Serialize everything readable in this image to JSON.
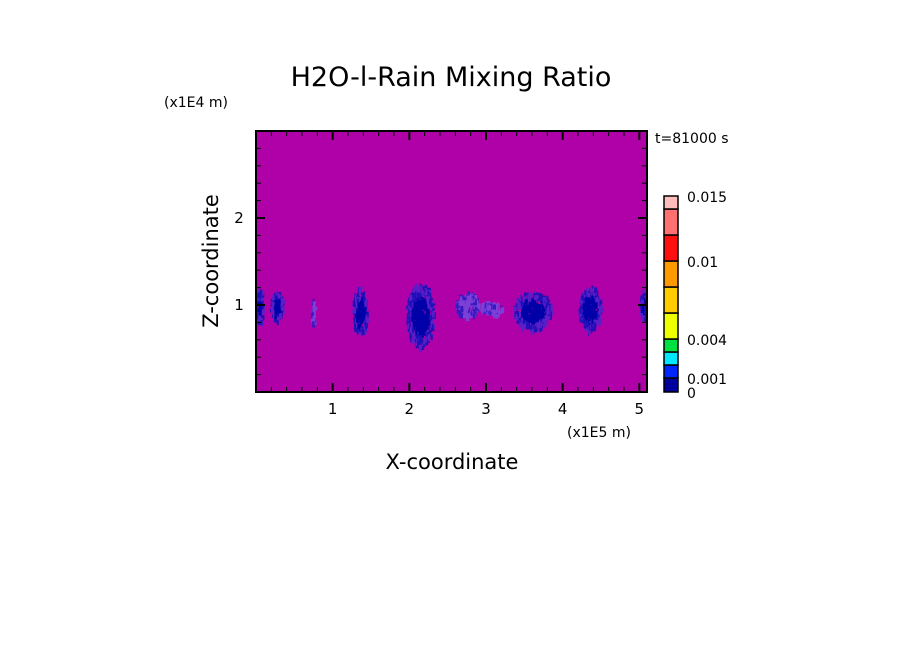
{
  "chart_data": {
    "type": "heatmap",
    "title": "H2O-l-Rain Mixing Ratio",
    "xlabel": "X-coordinate",
    "ylabel": "Z-coordinate",
    "x_unit": "(x1E5 m)",
    "y_unit": "(x1E4 m)",
    "time_label": "t=81000 s",
    "xlim": [
      0,
      5.1
    ],
    "ylim": [
      0,
      3.0
    ],
    "x_ticks": [
      "1",
      "2",
      "3",
      "4",
      "5"
    ],
    "y_ticks": [
      "1",
      "2"
    ],
    "background_color": "#b000a8",
    "colorbar": {
      "levels": [
        0,
        0.001,
        0.002,
        0.003,
        0.004,
        0.006,
        0.008,
        0.01,
        0.012,
        0.014,
        0.015
      ],
      "tick_labels": [
        "0",
        "0.001",
        "0.004",
        "0.01",
        "0.015"
      ],
      "colors": [
        "#00009c",
        "#0026ff",
        "#00e8ff",
        "#00e040",
        "#eeff00",
        "#ffcc00",
        "#ff9900",
        "#ff1010",
        "#ff7070",
        "#ffbcbc"
      ]
    },
    "rain_cells": [
      {
        "x": [
          0.0,
          0.08
        ],
        "z": [
          0.8,
          1.2
        ],
        "level": "dark"
      },
      {
        "x": [
          0.18,
          0.35
        ],
        "z": [
          0.85,
          1.15
        ],
        "level": "dark"
      },
      {
        "x": [
          0.71,
          0.77
        ],
        "z": [
          0.82,
          1.05
        ],
        "level": "light"
      },
      {
        "x": [
          1.25,
          1.45
        ],
        "z": [
          0.7,
          1.17
        ],
        "level": "dark"
      },
      {
        "x": [
          1.95,
          2.32
        ],
        "z": [
          0.57,
          1.22
        ],
        "level": "dark"
      },
      {
        "x": [
          2.6,
          2.9
        ],
        "z": [
          0.88,
          1.15
        ],
        "level": "light"
      },
      {
        "x": [
          2.9,
          3.2
        ],
        "z": [
          0.9,
          1.05
        ],
        "level": "light"
      },
      {
        "x": [
          3.35,
          3.85
        ],
        "z": [
          0.75,
          1.15
        ],
        "level": "dark"
      },
      {
        "x": [
          4.2,
          4.5
        ],
        "z": [
          0.75,
          1.2
        ],
        "level": "dark"
      },
      {
        "x": [
          5.0,
          5.1
        ],
        "z": [
          0.85,
          1.15
        ],
        "level": "dark"
      }
    ]
  }
}
